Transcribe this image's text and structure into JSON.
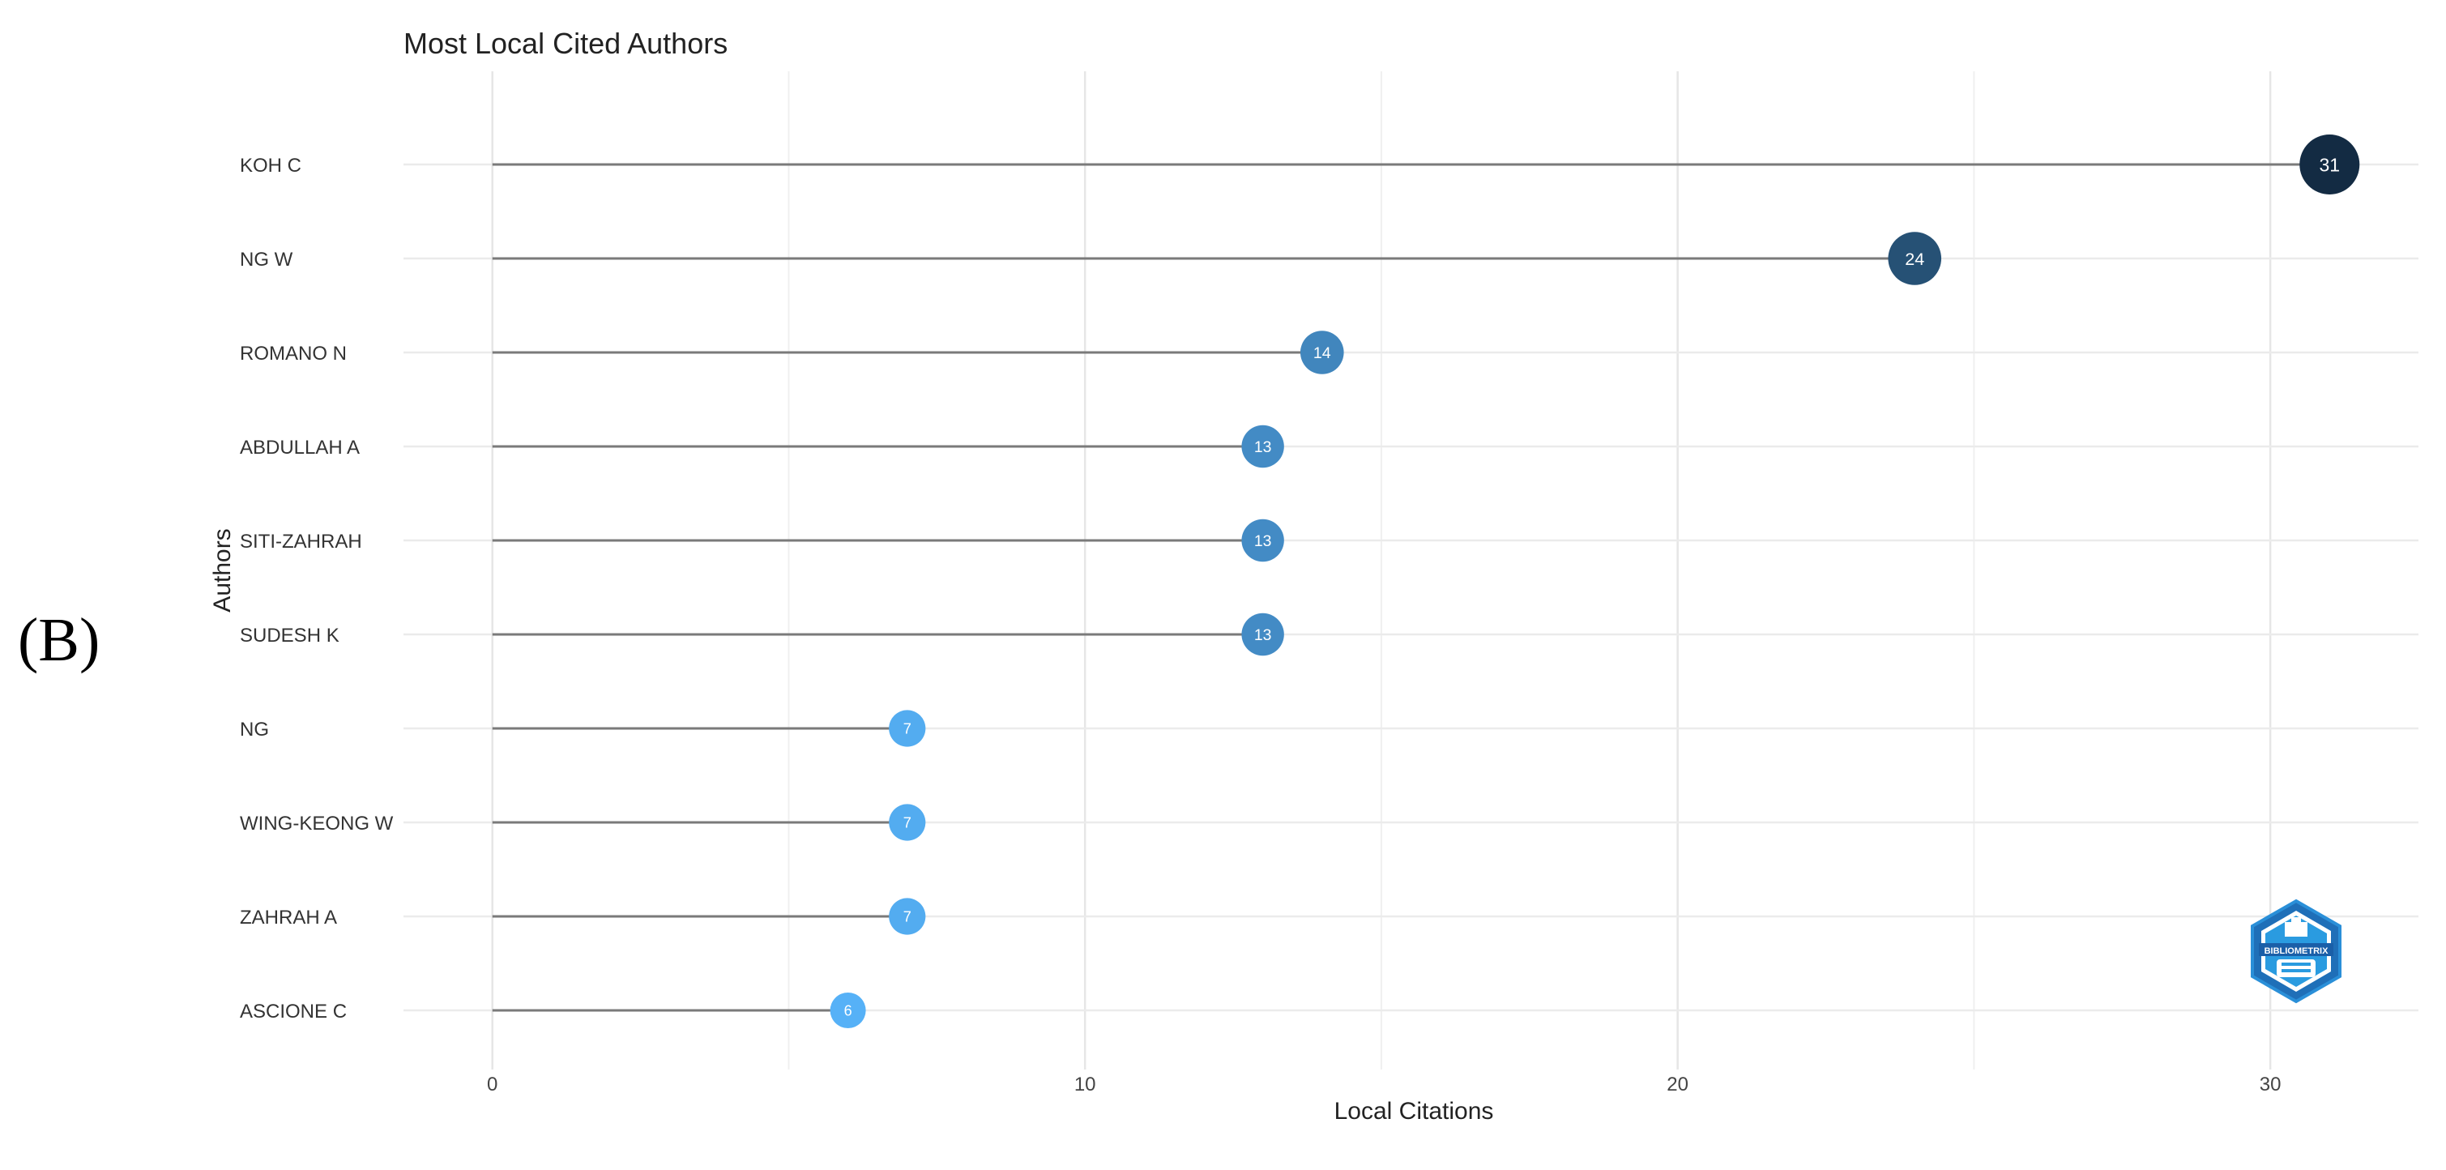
{
  "panel_label": "(B)",
  "chart_data": {
    "type": "lollipop",
    "title": "Most Local Cited Authors",
    "xlabel": "Local Citations",
    "ylabel": "Authors",
    "xlim": [
      -1.5,
      32.5
    ],
    "xticks": [
      0,
      10,
      20,
      30
    ],
    "grid": true,
    "categories": [
      "KOH C",
      "NG W",
      "ROMANO N",
      "ABDULLAH A",
      "SITI-ZAHRAH",
      "SUDESH K",
      "NG",
      "WING-KEONG W",
      "ZAHRAH A",
      "ASCIONE C"
    ],
    "values": [
      31,
      24,
      14,
      13,
      13,
      13,
      7,
      7,
      7,
      6
    ],
    "color_scale": {
      "low": "#56B1F7",
      "high": "#132B43"
    }
  },
  "logo": {
    "name": "bibliometrix-logo",
    "text": "BIBLIOMETRIX"
  }
}
